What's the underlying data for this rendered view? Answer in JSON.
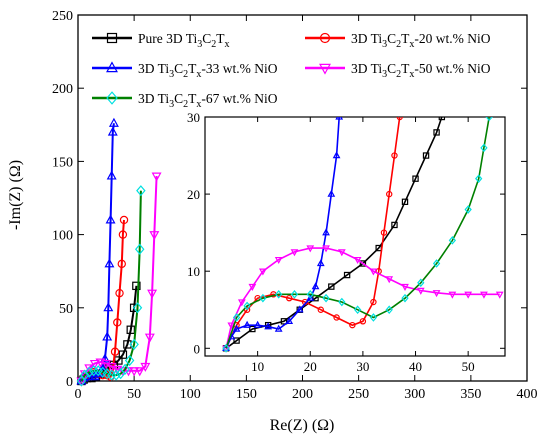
{
  "chart_data": {
    "type": "line",
    "xlabel": "Re(Z) (Ω)",
    "ylabel": "-Im(Z) (Ω)",
    "xlim": [
      0,
      400
    ],
    "ylim": [
      0,
      250
    ],
    "xticks": [
      0,
      50,
      100,
      150,
      200,
      250,
      300,
      350,
      400
    ],
    "yticks": [
      0,
      50,
      100,
      150,
      200,
      250
    ],
    "legend_position": "top",
    "series": [
      {
        "name": "Pure 3D Ti3C2Tx",
        "base": "Pure 3D Ti",
        "s1": "3",
        "mid": "C",
        "s2": "2",
        "tail": "T",
        "s3": "x",
        "suffix": "",
        "color": "#000000",
        "marker": "square",
        "points": [
          [
            3,
            0
          ],
          [
            5,
            1
          ],
          [
            8,
            2
          ],
          [
            12,
            2
          ],
          [
            16,
            3
          ],
          [
            20,
            5
          ],
          [
            24,
            7
          ],
          [
            28,
            9
          ],
          [
            32,
            11
          ],
          [
            36,
            14
          ],
          [
            40,
            18
          ],
          [
            44,
            25
          ],
          [
            47,
            35
          ],
          [
            50,
            50
          ],
          [
            52,
            65
          ]
        ],
        "inset_points": [
          [
            4,
            0
          ],
          [
            6,
            1
          ],
          [
            9,
            2.5
          ],
          [
            12,
            3
          ],
          [
            15,
            3.5
          ],
          [
            18,
            5
          ],
          [
            21,
            6.5
          ],
          [
            24,
            8
          ],
          [
            27,
            9.5
          ],
          [
            30,
            11
          ],
          [
            33,
            13
          ],
          [
            36,
            16
          ],
          [
            38,
            19
          ],
          [
            40,
            22
          ],
          [
            42,
            25
          ],
          [
            44,
            28
          ],
          [
            45,
            30
          ]
        ]
      },
      {
        "name": "3D Ti3C2Tx-20 wt.% NiO",
        "base": "3D Ti",
        "s1": "3",
        "mid": "C",
        "s2": "2",
        "tail": "T",
        "s3": "x",
        "suffix": "-20 wt.% NiO",
        "color": "#ff0000",
        "marker": "circle",
        "points": [
          [
            3,
            0
          ],
          [
            6,
            3
          ],
          [
            10,
            5
          ],
          [
            14,
            6
          ],
          [
            18,
            5
          ],
          [
            22,
            4
          ],
          [
            26,
            4
          ],
          [
            29,
            3
          ],
          [
            31,
            8
          ],
          [
            33,
            20
          ],
          [
            35,
            40
          ],
          [
            37,
            60
          ],
          [
            39,
            80
          ],
          [
            40,
            100
          ],
          [
            41,
            110
          ]
        ],
        "inset_points": [
          [
            4,
            0
          ],
          [
            6,
            3
          ],
          [
            8,
            5
          ],
          [
            10,
            6.5
          ],
          [
            13,
            7
          ],
          [
            16,
            6.5
          ],
          [
            19,
            6
          ],
          [
            22,
            5
          ],
          [
            25,
            4
          ],
          [
            28,
            3
          ],
          [
            30,
            3.5
          ],
          [
            32,
            6
          ],
          [
            33,
            10
          ],
          [
            34,
            15
          ],
          [
            35,
            20
          ],
          [
            36,
            25
          ],
          [
            37,
            30
          ]
        ]
      },
      {
        "name": "3D Ti3C2Tx-33 wt.% NiO",
        "base": "3D Ti",
        "s1": "3",
        "mid": "C",
        "s2": "2",
        "tail": "T",
        "s3": "x",
        "suffix": "-33 wt.% NiO",
        "color": "#0000ff",
        "marker": "triangle-up",
        "points": [
          [
            3,
            0
          ],
          [
            5,
            2
          ],
          [
            7,
            3
          ],
          [
            10,
            3
          ],
          [
            13,
            3
          ],
          [
            15,
            3
          ],
          [
            17,
            5
          ],
          [
            20,
            6
          ],
          [
            22,
            8
          ],
          [
            24,
            15
          ],
          [
            26,
            30
          ],
          [
            27,
            50
          ],
          [
            28,
            80
          ],
          [
            29,
            110
          ],
          [
            30,
            140
          ],
          [
            31,
            170
          ],
          [
            32,
            176
          ]
        ],
        "inset_points": [
          [
            4,
            0
          ],
          [
            5,
            1.5
          ],
          [
            6,
            2.5
          ],
          [
            8,
            3
          ],
          [
            10,
            3
          ],
          [
            12,
            2.8
          ],
          [
            14,
            2.5
          ],
          [
            16,
            3.5
          ],
          [
            18,
            5
          ],
          [
            20,
            6.5
          ],
          [
            21,
            8
          ],
          [
            22,
            11
          ],
          [
            23,
            15
          ],
          [
            24,
            20
          ],
          [
            25,
            25
          ],
          [
            25.5,
            30
          ]
        ]
      },
      {
        "name": "3D Ti3C2Tx-50 wt.% NiO",
        "base": "3D Ti",
        "s1": "3",
        "mid": "C",
        "s2": "2",
        "tail": "T",
        "s3": "x",
        "suffix": "-50 wt.% NiO",
        "color": "#ff00ff",
        "marker": "triangle-down",
        "points": [
          [
            3,
            0
          ],
          [
            6,
            5
          ],
          [
            10,
            9
          ],
          [
            15,
            12
          ],
          [
            20,
            13
          ],
          [
            25,
            12
          ],
          [
            30,
            10
          ],
          [
            35,
            8
          ],
          [
            40,
            7
          ],
          [
            45,
            7
          ],
          [
            50,
            7
          ],
          [
            55,
            7
          ],
          [
            60,
            10
          ],
          [
            64,
            30
          ],
          [
            66,
            60
          ],
          [
            68,
            100
          ],
          [
            70,
            140
          ]
        ],
        "inset_points": [
          [
            4,
            0
          ],
          [
            5,
            3
          ],
          [
            7,
            6
          ],
          [
            9,
            8
          ],
          [
            11,
            10
          ],
          [
            14,
            11.5
          ],
          [
            17,
            12.5
          ],
          [
            20,
            13
          ],
          [
            23,
            13
          ],
          [
            26,
            12.5
          ],
          [
            29,
            11.5
          ],
          [
            32,
            10
          ],
          [
            35,
            9
          ],
          [
            38,
            8
          ],
          [
            41,
            7.5
          ],
          [
            44,
            7.2
          ],
          [
            47,
            7
          ],
          [
            50,
            7
          ],
          [
            53,
            7
          ],
          [
            56,
            7
          ]
        ]
      },
      {
        "name": "3D Ti3C2Tx-67 wt.% NiO",
        "base": "3D Ti",
        "s1": "3",
        "mid": "C",
        "s2": "2",
        "tail": "T",
        "s3": "x",
        "suffix": "-67 wt.% NiO",
        "color": "#008000",
        "marker": "diamond",
        "marker_color": "#00e0e0",
        "points": [
          [
            3,
            0
          ],
          [
            6,
            4
          ],
          [
            10,
            6
          ],
          [
            14,
            7
          ],
          [
            18,
            7
          ],
          [
            22,
            6
          ],
          [
            26,
            5
          ],
          [
            30,
            4
          ],
          [
            34,
            4
          ],
          [
            38,
            5
          ],
          [
            42,
            8
          ],
          [
            46,
            14
          ],
          [
            50,
            25
          ],
          [
            53,
            50
          ],
          [
            55,
            90
          ],
          [
            56,
            130
          ]
        ],
        "inset_points": [
          [
            4,
            0
          ],
          [
            6,
            4
          ],
          [
            8,
            5.5
          ],
          [
            11,
            6.5
          ],
          [
            14,
            7
          ],
          [
            17,
            7
          ],
          [
            20,
            7
          ],
          [
            23,
            6.5
          ],
          [
            26,
            6
          ],
          [
            29,
            5
          ],
          [
            32,
            4
          ],
          [
            35,
            5
          ],
          [
            38,
            6.5
          ],
          [
            41,
            8.5
          ],
          [
            44,
            11
          ],
          [
            47,
            14
          ],
          [
            50,
            18
          ],
          [
            52,
            22
          ],
          [
            53,
            26
          ],
          [
            54,
            30
          ]
        ]
      }
    ],
    "inset": {
      "xlim": [
        0,
        57
      ],
      "ylim": [
        -1,
        30
      ],
      "xticks": [
        10,
        20,
        30,
        40,
        50
      ],
      "yticks": [
        0,
        10,
        20,
        30
      ]
    }
  }
}
